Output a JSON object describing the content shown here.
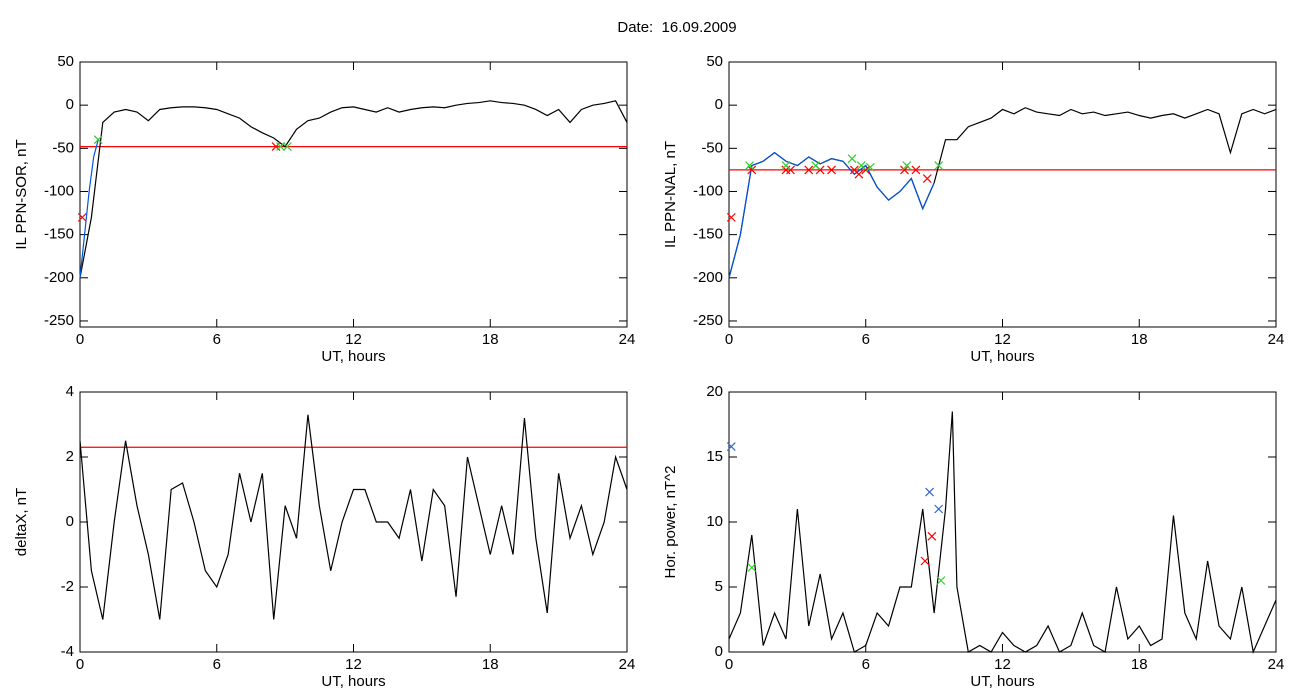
{
  "title": "Date:  16.09.2009",
  "chart_data": [
    {
      "type": "line",
      "xlabel": "UT, hours",
      "ylabel": "IL PPN-SOR, nT",
      "xlim": [
        0,
        24
      ],
      "ylim": [
        -257,
        50
      ],
      "xticks": [
        0,
        6,
        12,
        18,
        24
      ],
      "yticks": [
        50,
        0,
        -50,
        -100,
        -150,
        -200,
        -250
      ],
      "hline": {
        "value": -48,
        "color": "#ff0000"
      },
      "series": [
        {
          "color": "#000000",
          "x": [
            0,
            0.5,
            1,
            1.5,
            2,
            2.5,
            3,
            3.5,
            4,
            4.5,
            5,
            5.5,
            6,
            6.5,
            7,
            7.5,
            8,
            8.5,
            9,
            9.5,
            10,
            10.5,
            11,
            11.5,
            12,
            12.5,
            13,
            13.5,
            14,
            14.5,
            15,
            15.5,
            16,
            16.5,
            17,
            17.5,
            18,
            18.5,
            19,
            19.5,
            20,
            20.5,
            21,
            21.5,
            22,
            22.5,
            23,
            23.5,
            24
          ],
          "values": [
            -200,
            -130,
            -20,
            -8,
            -5,
            -8,
            -18,
            -5,
            -3,
            -2,
            -2,
            -3,
            -5,
            -10,
            -15,
            -25,
            -32,
            -38,
            -48,
            -28,
            -18,
            -15,
            -8,
            -3,
            -2,
            -5,
            -8,
            -3,
            -8,
            -5,
            -3,
            -2,
            -3,
            0,
            2,
            3,
            5,
            3,
            2,
            0,
            -5,
            -12,
            -5,
            -20,
            -5,
            0,
            2,
            5,
            -20
          ]
        },
        {
          "color": "#0055dd",
          "x": [
            0,
            0.2,
            0.4,
            0.6,
            0.8
          ],
          "values": [
            -200,
            -150,
            -100,
            -60,
            -40
          ]
        }
      ],
      "points": [
        {
          "color": "#ff0000",
          "x": [
            0.1,
            8.6
          ],
          "values": [
            -130,
            -48
          ]
        },
        {
          "color": "#33cc33",
          "x": [
            0.8,
            8.8,
            9.1
          ],
          "values": [
            -40,
            -48,
            -48
          ]
        }
      ]
    },
    {
      "type": "line",
      "xlabel": "UT, hours",
      "ylabel": "IL PPN-NAL, nT",
      "xlim": [
        0,
        24
      ],
      "ylim": [
        -257,
        50
      ],
      "xticks": [
        0,
        6,
        12,
        18,
        24
      ],
      "yticks": [
        50,
        0,
        -50,
        -100,
        -150,
        -200,
        -250
      ],
      "hline": {
        "value": -75,
        "color": "#ff0000"
      },
      "series": [
        {
          "color": "#000000",
          "x": [
            0,
            0.5,
            1,
            1.5,
            2,
            2.5,
            3,
            3.5,
            4,
            4.5,
            5,
            5.5,
            6,
            6.5,
            7,
            7.5,
            8,
            8.5,
            9,
            9.5,
            10,
            10.5,
            11,
            11.5,
            12,
            12.5,
            13,
            13.5,
            14,
            14.5,
            15,
            15.5,
            16,
            16.5,
            17,
            17.5,
            18,
            18.5,
            19,
            19.5,
            20,
            20.5,
            21,
            21.5,
            22,
            22.5,
            23,
            23.5,
            24
          ],
          "values": [
            -200,
            -150,
            -70,
            -65,
            -55,
            -65,
            -70,
            -60,
            -68,
            -62,
            -65,
            -80,
            -70,
            -95,
            -110,
            -100,
            -85,
            -120,
            -90,
            -40,
            -40,
            -25,
            -20,
            -15,
            -5,
            -10,
            -3,
            -8,
            -10,
            -12,
            -5,
            -10,
            -8,
            -12,
            -10,
            -8,
            -12,
            -15,
            -12,
            -10,
            -15,
            -10,
            -5,
            -10,
            -55,
            -10,
            -5,
            -10,
            -5
          ]
        },
        {
          "color": "#0055dd",
          "x": [
            0,
            0.5,
            1,
            1.5,
            2,
            2.5,
            3,
            3.5,
            4,
            4.5,
            5,
            5.5,
            6,
            6.5,
            7,
            7.5,
            8,
            8.5,
            9
          ],
          "values": [
            -200,
            -150,
            -70,
            -65,
            -55,
            -65,
            -70,
            -60,
            -68,
            -62,
            -65,
            -80,
            -70,
            -95,
            -110,
            -100,
            -85,
            -120,
            -90
          ]
        }
      ],
      "points": [
        {
          "color": "#ff0000",
          "x": [
            0.1,
            1,
            2.5,
            2.7,
            3.5,
            4,
            4.5,
            5.5,
            5.7,
            6,
            7.7,
            8.2,
            8.7
          ],
          "values": [
            -130,
            -75,
            -75,
            -75,
            -75,
            -75,
            -75,
            -75,
            -80,
            -75,
            -75,
            -75,
            -85
          ]
        },
        {
          "color": "#33cc33",
          "x": [
            0.9,
            2.5,
            3.8,
            5.4,
            5.8,
            6.2,
            7.8,
            9.2
          ],
          "values": [
            -70,
            -70,
            -70,
            -62,
            -70,
            -72,
            -70,
            -70
          ]
        }
      ]
    },
    {
      "type": "line",
      "xlabel": "UT, hours",
      "ylabel": "deltaX, nT",
      "xlim": [
        0,
        24
      ],
      "ylim": [
        -4,
        4
      ],
      "xticks": [
        0,
        6,
        12,
        18,
        24
      ],
      "yticks": [
        4,
        2,
        0,
        -2,
        -4
      ],
      "hline": {
        "value": 2.3,
        "color": "#ff0000"
      },
      "series": [
        {
          "color": "#000000",
          "x": [
            0,
            0.5,
            1,
            1.5,
            2,
            2.5,
            3,
            3.5,
            4,
            4.5,
            5,
            5.5,
            6,
            6.5,
            7,
            7.5,
            8,
            8.5,
            9,
            9.5,
            10,
            10.5,
            11,
            11.5,
            12,
            12.5,
            13,
            13.5,
            14,
            14.5,
            15,
            15.5,
            16,
            16.5,
            17,
            17.5,
            18,
            18.5,
            19,
            19.5,
            20,
            20.5,
            21,
            21.5,
            22,
            22.5,
            23,
            23.5,
            24
          ],
          "values": [
            2.5,
            -1.5,
            -3,
            0,
            2.5,
            0.5,
            -1,
            -3,
            1,
            1.2,
            0,
            -1.5,
            -2,
            -1,
            1.5,
            0,
            1.5,
            -3,
            0.5,
            -0.5,
            3.3,
            0.5,
            -1.5,
            0,
            1,
            1,
            0,
            0,
            -0.5,
            1,
            -1.2,
            1,
            0.5,
            -2.3,
            2,
            0.5,
            -1,
            0.5,
            -1,
            3.2,
            -0.5,
            -2.8,
            1.5,
            -0.5,
            0.5,
            -1,
            0,
            2,
            1
          ]
        }
      ],
      "points": []
    },
    {
      "type": "line",
      "xlabel": "UT, hours",
      "ylabel": "Hor. power, nT^2",
      "xlim": [
        0,
        24
      ],
      "ylim": [
        0,
        20
      ],
      "xticks": [
        0,
        6,
        12,
        18,
        24
      ],
      "yticks": [
        20,
        15,
        10,
        5,
        0
      ],
      "series": [
        {
          "color": "#000000",
          "x": [
            0,
            0.5,
            1,
            1.5,
            2,
            2.5,
            3,
            3.5,
            4,
            4.5,
            5,
            5.5,
            6,
            6.5,
            7,
            7.5,
            8,
            8.5,
            9,
            9.5,
            9.8,
            10,
            10.5,
            11,
            11.5,
            12,
            12.5,
            13,
            13.5,
            14,
            14.5,
            15,
            15.5,
            16,
            16.5,
            17,
            17.5,
            18,
            18.5,
            19,
            19.5,
            20,
            20.5,
            21,
            21.5,
            22,
            22.5,
            23,
            23.5,
            24
          ],
          "values": [
            1,
            3,
            9,
            0.5,
            3,
            1,
            11,
            2,
            6,
            1,
            3,
            0,
            0.5,
            3,
            2,
            5,
            5,
            11,
            3,
            11,
            18.5,
            5,
            0,
            0.5,
            0,
            1.5,
            0.5,
            0,
            0.5,
            2,
            0,
            0.5,
            3,
            0.5,
            0,
            5,
            1,
            2,
            0.5,
            1,
            10.5,
            3,
            1,
            7,
            2,
            1,
            5,
            0,
            2,
            4
          ]
        }
      ],
      "points": [
        {
          "color": "#3366cc",
          "x": [
            0.1,
            8.8,
            9.2
          ],
          "values": [
            15.8,
            12.3,
            11
          ]
        },
        {
          "color": "#ff0000",
          "x": [
            8.9,
            8.6
          ],
          "values": [
            8.9,
            7
          ]
        },
        {
          "color": "#33cc33",
          "x": [
            1,
            9.3
          ],
          "values": [
            6.5,
            5.5
          ]
        }
      ]
    }
  ]
}
